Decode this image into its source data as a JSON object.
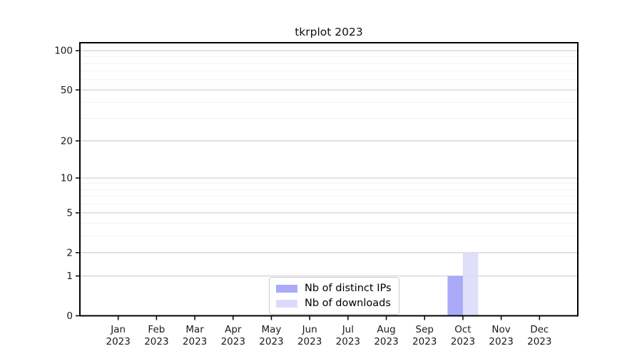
{
  "page": {
    "background": "#ffffff"
  },
  "chart_data": {
    "type": "bar",
    "title": "tkrplot 2023",
    "categories": [
      "Jan 2023",
      "Feb 2023",
      "Mar 2023",
      "Apr 2023",
      "May 2023",
      "Jun 2023",
      "Jul 2023",
      "Aug 2023",
      "Sep 2023",
      "Oct 2023",
      "Nov 2023",
      "Dec 2023"
    ],
    "series": [
      {
        "name": "Nb of distinct IPs",
        "color": "#aaaaf8",
        "values": [
          0,
          0,
          0,
          0,
          0,
          0,
          0,
          0,
          0,
          1,
          0,
          0
        ]
      },
      {
        "name": "Nb of downloads",
        "color": "#dcdcfa",
        "values": [
          0,
          0,
          0,
          0,
          0,
          0,
          0,
          0,
          0,
          2,
          0,
          0
        ]
      }
    ],
    "yscale": "log1p",
    "ylim": [
      0,
      115
    ],
    "yticks": [
      0,
      1,
      2,
      5,
      10,
      20,
      50,
      100
    ],
    "minor_gridlines": [
      3,
      4,
      6,
      7,
      8,
      9,
      30,
      40,
      60,
      70,
      80,
      90
    ],
    "grid": "horizontal",
    "legend_position": "inside-bottom-center",
    "colors": {
      "major_grid": "#cfcfcf",
      "minor_grid": "#f1f1f1",
      "axis": "#000000",
      "text": "#1a1a1a"
    }
  }
}
